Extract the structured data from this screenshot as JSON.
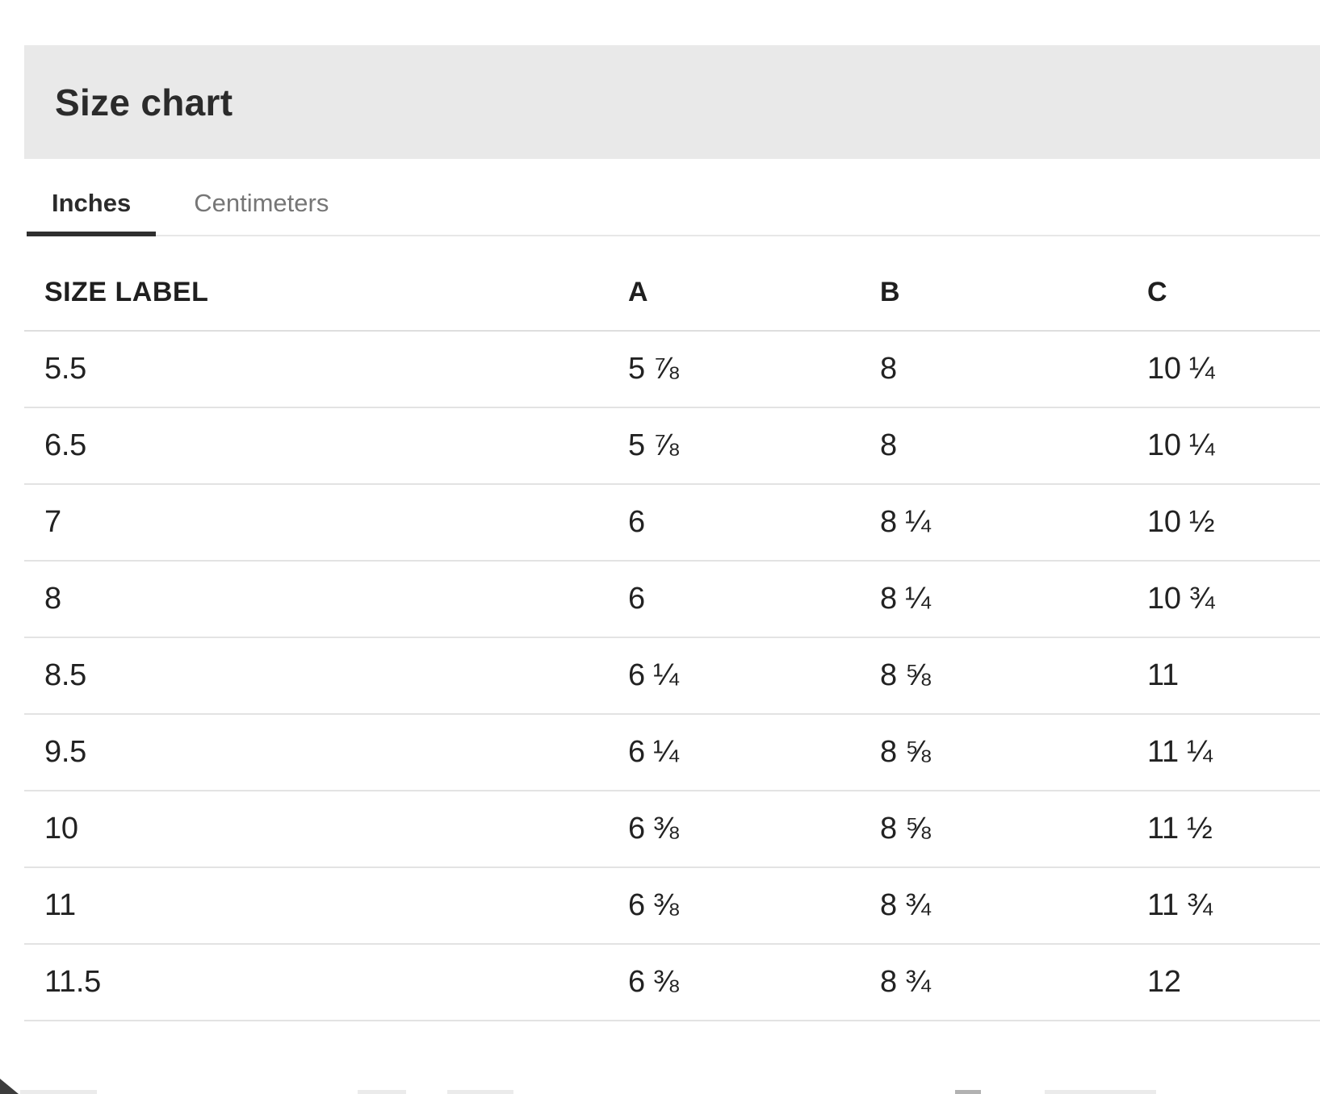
{
  "header": {
    "title": "Size chart"
  },
  "tabs": {
    "inches": {
      "label": "Inches",
      "active": true
    },
    "centimeters": {
      "label": "Centimeters",
      "active": false
    }
  },
  "table": {
    "columns": [
      "SIZE LABEL",
      "A",
      "B",
      "C"
    ],
    "rows": [
      {
        "size": "5.5",
        "a": "5 ⅞",
        "b": "8",
        "c": "10 ¼"
      },
      {
        "size": "6.5",
        "a": "5 ⅞",
        "b": "8",
        "c": "10 ¼"
      },
      {
        "size": "7",
        "a": "6",
        "b": "8 ¼",
        "c": "10 ½"
      },
      {
        "size": "8",
        "a": "6",
        "b": "8 ¼",
        "c": "10 ¾"
      },
      {
        "size": "8.5",
        "a": "6 ¼",
        "b": "8 ⅝",
        "c": "11"
      },
      {
        "size": "9.5",
        "a": "6 ¼",
        "b": "8 ⅝",
        "c": "11 ¼"
      },
      {
        "size": "10",
        "a": "6 ⅜",
        "b": "8 ⅝",
        "c": "11 ½"
      },
      {
        "size": "11",
        "a": "6 ⅜",
        "b": "8 ¾",
        "c": "11 ¾"
      },
      {
        "size": "11.5",
        "a": "6 ⅜",
        "b": "8 ¾",
        "c": "12"
      }
    ]
  },
  "colors": {
    "header_band": "#e9e9e9",
    "active_tab_underline": "#2f2f2f",
    "inactive_tab_text": "#767676",
    "row_divider": "#e3e3e3",
    "text": "#222222"
  }
}
